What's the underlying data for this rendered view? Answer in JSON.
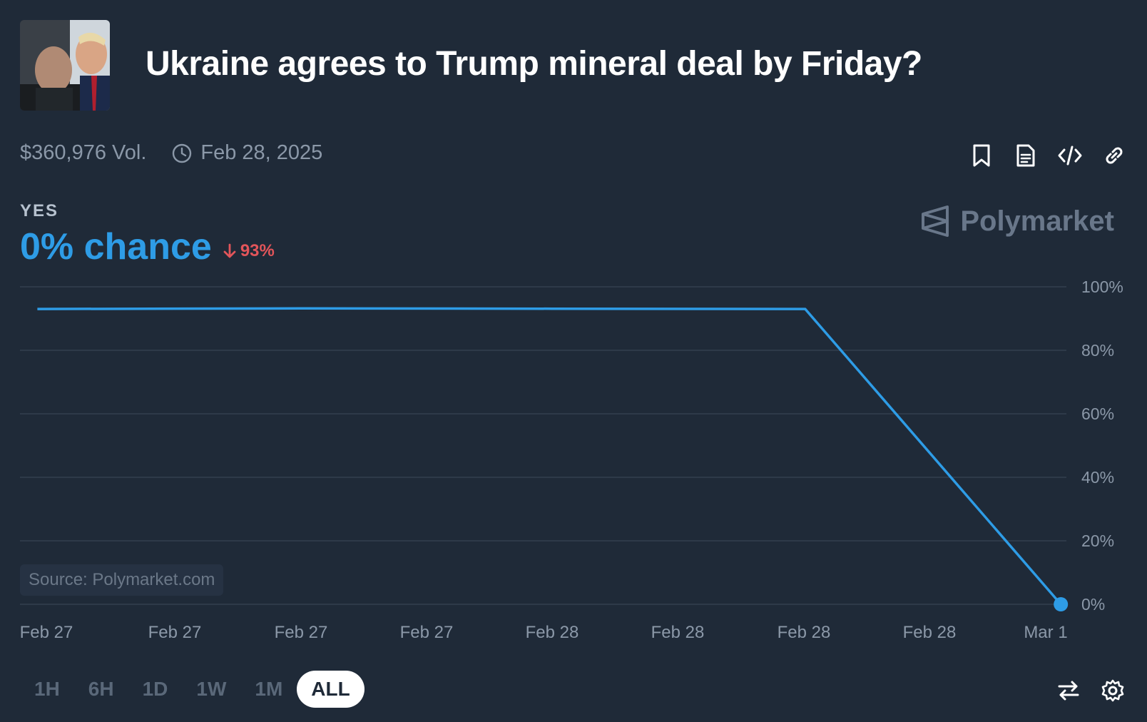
{
  "market": {
    "title": "Ukraine agrees to Trump mineral deal by Friday?",
    "volume": "$360,976 Vol.",
    "end_date": "Feb 28, 2025"
  },
  "outcome": {
    "label": "YES",
    "chance": "0% chance",
    "change": "93%",
    "change_direction": "down"
  },
  "brand": {
    "name": "Polymarket"
  },
  "source": "Source: Polymarket.com",
  "actions": {
    "icons": [
      "bookmark-icon",
      "document-icon",
      "code-embed-icon",
      "link-icon"
    ]
  },
  "time_ranges": {
    "options": [
      "1H",
      "6H",
      "1D",
      "1W",
      "1M",
      "ALL"
    ],
    "selected": "ALL"
  },
  "bottom_icons": [
    "swap-icon",
    "gear-icon"
  ],
  "colors": {
    "background": "#1f2a38",
    "line": "#2e9ce6",
    "down": "#e2555a",
    "grid": "#34404f",
    "axis_text": "#8b98a8"
  },
  "chart_data": {
    "type": "line",
    "title": "",
    "xlabel": "",
    "ylabel": "",
    "y_tick_labels": [
      "100%",
      "80%",
      "60%",
      "40%",
      "20%",
      "0%"
    ],
    "y_ticks": [
      100,
      80,
      60,
      40,
      20,
      0
    ],
    "ylim": [
      0,
      100
    ],
    "x_tick_labels": [
      "Feb 27",
      "Feb 27",
      "Feb 27",
      "Feb 27",
      "Feb 28",
      "Feb 28",
      "Feb 28",
      "Feb 28",
      "Mar 1"
    ],
    "xlim": [
      0,
      8
    ],
    "grid": true,
    "series": [
      {
        "x": [
          -0.07,
          2,
          4,
          6,
          6.01,
          8.13
        ],
        "values": [
          93,
          93.2,
          93.1,
          93,
          93,
          0
        ]
      }
    ]
  }
}
